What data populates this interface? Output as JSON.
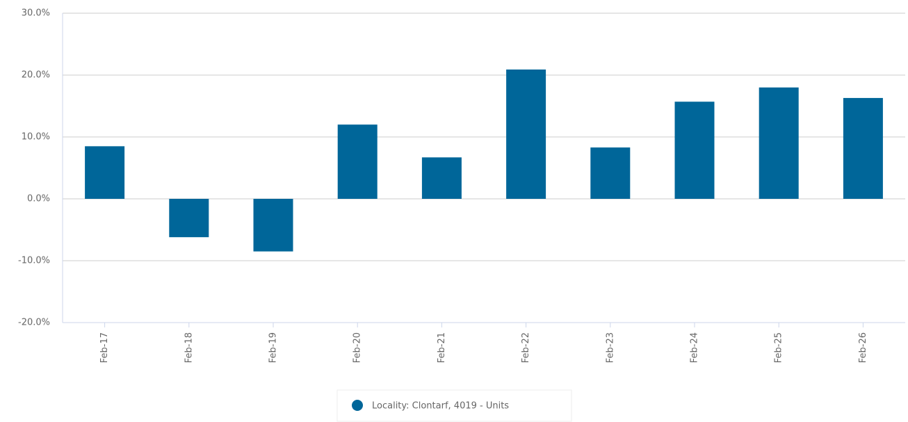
{
  "chart_data": {
    "type": "bar",
    "categories": [
      "Feb-17",
      "Feb-18",
      "Feb-19",
      "Feb-20",
      "Feb-21",
      "Feb-22",
      "Feb-23",
      "Feb-24",
      "Feb-25",
      "Feb-26"
    ],
    "series": [
      {
        "name": "Locality: Clontarf, 4019 - Units",
        "color": "#006699",
        "values": [
          8.5,
          -6.2,
          -8.5,
          12.0,
          6.7,
          20.9,
          8.3,
          15.7,
          18.0,
          16.3
        ]
      }
    ],
    "ylim": [
      -20,
      30
    ],
    "yticks": [
      {
        "value": -20,
        "label": "-20.0%"
      },
      {
        "value": -10,
        "label": "-10.0%"
      },
      {
        "value": 0,
        "label": "0.0%"
      },
      {
        "value": 10,
        "label": "10.0%"
      },
      {
        "value": 20,
        "label": "20.0%"
      },
      {
        "value": 30,
        "label": "30.0%"
      }
    ],
    "grid": true,
    "legend": "bottom"
  }
}
